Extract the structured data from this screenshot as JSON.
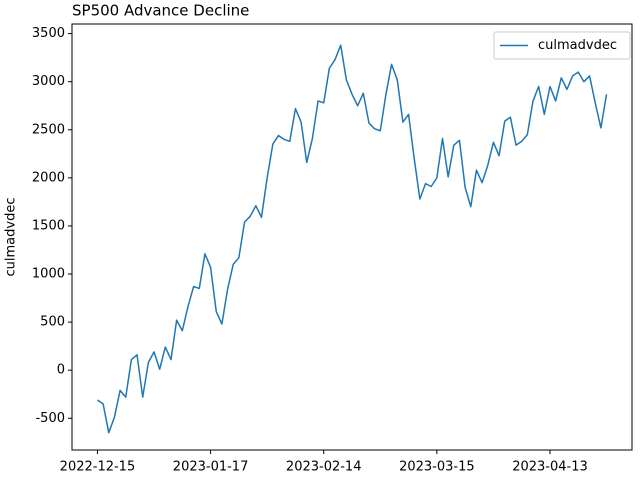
{
  "chart_data": {
    "type": "line",
    "title": "SP500 Advance Decline",
    "ylabel": "culmadvdec",
    "categories": [
      "2022-12-15",
      null,
      null,
      null,
      null,
      null,
      null,
      null,
      null,
      null,
      null,
      null,
      null,
      null,
      null,
      null,
      null,
      null,
      null,
      null,
      "2023-01-17",
      null,
      null,
      null,
      null,
      null,
      null,
      null,
      null,
      null,
      null,
      null,
      null,
      null,
      null,
      null,
      null,
      null,
      null,
      null,
      "2023-02-14",
      null,
      null,
      null,
      null,
      null,
      null,
      null,
      null,
      null,
      null,
      null,
      null,
      null,
      null,
      null,
      null,
      null,
      null,
      null,
      "2023-03-15",
      null,
      null,
      null,
      null,
      null,
      null,
      null,
      null,
      null,
      null,
      null,
      null,
      null,
      null,
      null,
      null,
      null,
      null,
      null,
      "2023-04-13",
      null,
      null,
      null,
      null,
      null,
      null,
      null,
      null,
      null,
      null
    ],
    "series": [
      {
        "name": "culmadvdec",
        "color": "#1f77b4",
        "values": [
          -310,
          -350,
          -650,
          -490,
          -210,
          -280,
          110,
          160,
          -280,
          80,
          190,
          10,
          240,
          110,
          520,
          410,
          660,
          870,
          850,
          1210,
          1070,
          610,
          480,
          840,
          1100,
          1170,
          1540,
          1600,
          1710,
          1590,
          2000,
          2350,
          2440,
          2400,
          2380,
          2720,
          2580,
          2160,
          2410,
          2800,
          2780,
          3140,
          3230,
          3380,
          3020,
          2870,
          2750,
          2880,
          2570,
          2510,
          2490,
          2870,
          3180,
          3020,
          2580,
          2660,
          2200,
          1780,
          1940,
          1910,
          2000,
          2410,
          2010,
          2340,
          2390,
          1900,
          1700,
          2080,
          1950,
          2130,
          2370,
          2230,
          2590,
          2630,
          2340,
          2380,
          2450,
          2800,
          2950,
          2660,
          2950,
          2800,
          3040,
          2920,
          3060,
          3100,
          3000,
          3060,
          2780,
          2520,
          2870
        ]
      }
    ],
    "ylim": [
      -830,
      3600
    ],
    "yticks": [
      -500,
      0,
      500,
      1000,
      1500,
      2000,
      2500,
      3000,
      3500
    ],
    "legend": "upper right"
  }
}
